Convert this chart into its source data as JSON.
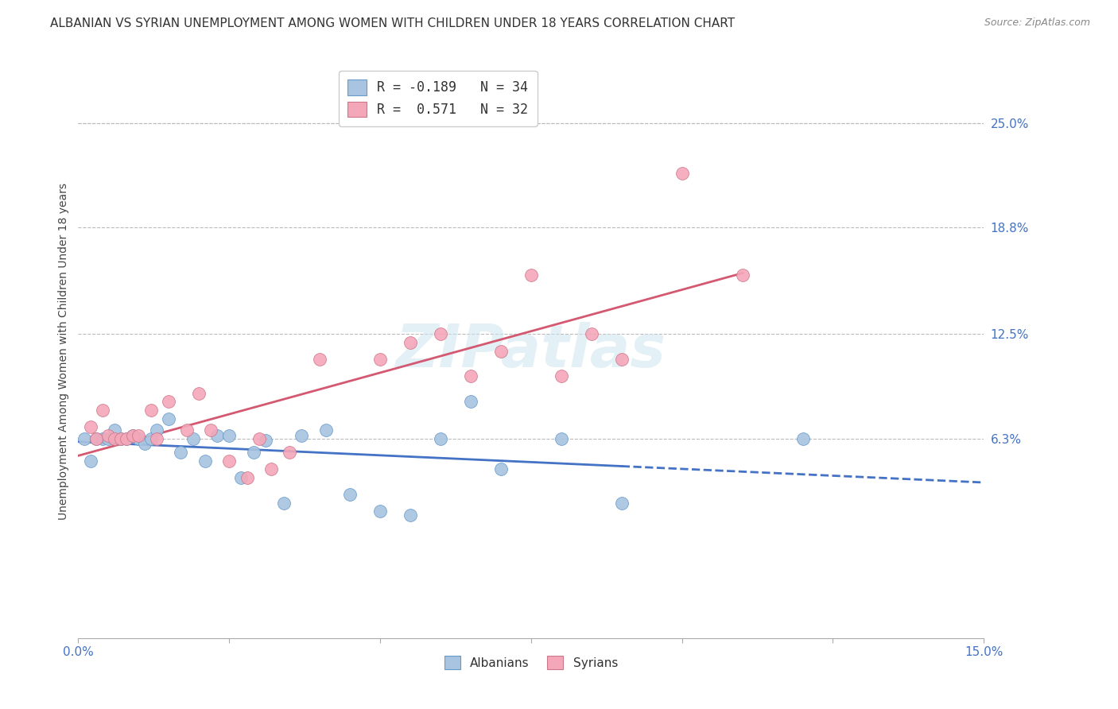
{
  "title": "ALBANIAN VS SYRIAN UNEMPLOYMENT AMONG WOMEN WITH CHILDREN UNDER 18 YEARS CORRELATION CHART",
  "source": "Source: ZipAtlas.com",
  "ylabel": "Unemployment Among Women with Children Under 18 years",
  "ytick_labels": [
    "25.0%",
    "18.8%",
    "12.5%",
    "6.3%"
  ],
  "ytick_values": [
    0.25,
    0.188,
    0.125,
    0.063
  ],
  "xlim": [
    0.0,
    0.15
  ],
  "ylim": [
    -0.055,
    0.285
  ],
  "legend_albanian": "R = -0.189   N = 34",
  "legend_syrian": "R =  0.571   N = 32",
  "albanian_fill": "#a8c4e0",
  "albanian_edge": "#6699cc",
  "syrian_fill": "#f4a7b9",
  "syrian_edge": "#cc7788",
  "albanian_line_color": "#4472c4",
  "syrian_line_color": "#d45870",
  "background_color": "#ffffff",
  "grid_color": "#bbbbbb",
  "title_fontsize": 11,
  "label_fontsize": 10,
  "tick_fontsize": 11,
  "albanian_points_x": [
    0.001,
    0.002,
    0.003,
    0.004,
    0.005,
    0.006,
    0.007,
    0.008,
    0.009,
    0.01,
    0.011,
    0.012,
    0.013,
    0.015,
    0.017,
    0.019,
    0.021,
    0.023,
    0.025,
    0.027,
    0.029,
    0.031,
    0.034,
    0.037,
    0.041,
    0.045,
    0.05,
    0.055,
    0.06,
    0.065,
    0.07,
    0.08,
    0.09,
    0.12
  ],
  "albanian_points_y": [
    0.063,
    0.05,
    0.063,
    0.063,
    0.063,
    0.068,
    0.063,
    0.063,
    0.065,
    0.063,
    0.06,
    0.063,
    0.068,
    0.075,
    0.055,
    0.063,
    0.05,
    0.065,
    0.065,
    0.04,
    0.055,
    0.062,
    0.025,
    0.065,
    0.068,
    0.03,
    0.02,
    0.018,
    0.063,
    0.085,
    0.045,
    0.063,
    0.025,
    0.063
  ],
  "syrian_points_x": [
    0.002,
    0.003,
    0.004,
    0.005,
    0.006,
    0.007,
    0.008,
    0.009,
    0.01,
    0.012,
    0.013,
    0.015,
    0.018,
    0.02,
    0.022,
    0.025,
    0.028,
    0.03,
    0.032,
    0.035,
    0.04,
    0.05,
    0.055,
    0.06,
    0.065,
    0.07,
    0.075,
    0.08,
    0.085,
    0.09,
    0.1,
    0.11
  ],
  "syrian_points_y": [
    0.07,
    0.063,
    0.08,
    0.065,
    0.063,
    0.063,
    0.063,
    0.065,
    0.065,
    0.08,
    0.063,
    0.085,
    0.068,
    0.09,
    0.068,
    0.05,
    0.04,
    0.063,
    0.045,
    0.055,
    0.11,
    0.11,
    0.12,
    0.125,
    0.1,
    0.115,
    0.16,
    0.1,
    0.125,
    0.11,
    0.22,
    0.16
  ],
  "alb_trend_x0": 0.0,
  "alb_trend_x_solid_end": 0.09,
  "alb_trend_x_dashed_end": 0.15,
  "syr_trend_x0": 0.0,
  "syr_trend_x_end": 0.11
}
